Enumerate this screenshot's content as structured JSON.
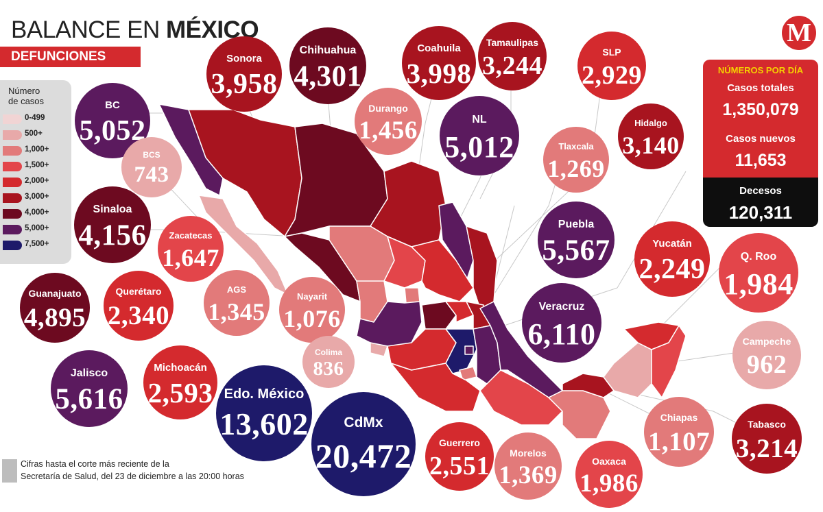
{
  "header": {
    "title_light": "BALANCE EN ",
    "title_bold": "MÉXICO",
    "subtitle": "DEFUNCIONES"
  },
  "logo": {
    "letter": "M"
  },
  "legend": {
    "title_line1": "Número",
    "title_line2": "de casos",
    "items": [
      {
        "label": "0-499",
        "color": "#f1d4d4"
      },
      {
        "label": "500+",
        "color": "#e8a9a9"
      },
      {
        "label": "1,000+",
        "color": "#e27a7a"
      },
      {
        "label": "1,500+",
        "color": "#e3454a"
      },
      {
        "label": "2,000+",
        "color": "#d42a2e"
      },
      {
        "label": "3,000+",
        "color": "#a8141f"
      },
      {
        "label": "4,000+",
        "color": "#6d0a20"
      },
      {
        "label": "5,000+",
        "color": "#5b1a5e"
      },
      {
        "label": "7,500+",
        "color": "#1e1a6a"
      }
    ]
  },
  "states": [
    {
      "name": "BC",
      "value": "5,052",
      "color": "#5b1a5e"
    },
    {
      "name": "BCS",
      "value": "743",
      "color": "#e8a9a9"
    },
    {
      "name": "Sinaloa",
      "value": "4,156",
      "color": "#6d0a20"
    },
    {
      "name": "Guanajuato",
      "value": "4,895",
      "color": "#6d0a20"
    },
    {
      "name": "Jalisco",
      "value": "5,616",
      "color": "#5b1a5e"
    },
    {
      "name": "Sonora",
      "value": "3,958",
      "color": "#a8141f"
    },
    {
      "name": "Chihuahua",
      "value": "4,301",
      "color": "#6d0a20"
    },
    {
      "name": "Coahuila",
      "value": "3,998",
      "color": "#a8141f"
    },
    {
      "name": "Tamaulipas",
      "value": "3,244",
      "color": "#a8141f"
    },
    {
      "name": "SLP",
      "value": "2,929",
      "color": "#d42a2e"
    },
    {
      "name": "Durango",
      "value": "1,456",
      "color": "#e27a7a"
    },
    {
      "name": "NL",
      "value": "5,012",
      "color": "#5b1a5e"
    },
    {
      "name": "Hidalgo",
      "value": "3,140",
      "color": "#a8141f"
    },
    {
      "name": "Tlaxcala",
      "value": "1,269",
      "color": "#e27a7a"
    },
    {
      "name": "Zacatecas",
      "value": "1,647",
      "color": "#e3454a"
    },
    {
      "name": "Querétaro",
      "value": "2,340",
      "color": "#d42a2e"
    },
    {
      "name": "AGS",
      "value": "1,345",
      "color": "#e27a7a"
    },
    {
      "name": "Nayarit",
      "value": "1,076",
      "color": "#e27a7a"
    },
    {
      "name": "Colima",
      "value": "836",
      "color": "#e8a9a9"
    },
    {
      "name": "Michoacán",
      "value": "2,593",
      "color": "#d42a2e"
    },
    {
      "name": "Edo. México",
      "value": "13,602",
      "color": "#1e1a6a"
    },
    {
      "name": "CdMx",
      "value": "20,472",
      "color": "#1e1a6a"
    },
    {
      "name": "Puebla",
      "value": "5,567",
      "color": "#5b1a5e"
    },
    {
      "name": "Veracruz",
      "value": "6,110",
      "color": "#5b1a5e"
    },
    {
      "name": "Yucatán",
      "value": "2,249",
      "color": "#d42a2e"
    },
    {
      "name": "Q. Roo",
      "value": "1,984",
      "color": "#e3454a"
    },
    {
      "name": "Campeche",
      "value": "962",
      "color": "#e8a9a9"
    },
    {
      "name": "Chiapas",
      "value": "1,107",
      "color": "#e27a7a"
    },
    {
      "name": "Tabasco",
      "value": "3,214",
      "color": "#a8141f"
    },
    {
      "name": "Guerrero",
      "value": "2,551",
      "color": "#d42a2e"
    },
    {
      "name": "Morelos",
      "value": "1,369",
      "color": "#e27a7a"
    },
    {
      "name": "Oaxaca",
      "value": "1,986",
      "color": "#e3454a"
    }
  ],
  "stats": {
    "heading": "NÚMEROS POR DÍA",
    "total_label": "Casos totales",
    "total_value": "1,350,079",
    "new_label": "Casos nuevos",
    "new_value": "11,653",
    "deaths_label": "Decesos",
    "deaths_value": "120,311"
  },
  "footnote": {
    "line1": "Cifras hasta el corte más reciente de la",
    "line2": "Secretaría de Salud, del 23 de diciembre a las 20:00 horas"
  }
}
